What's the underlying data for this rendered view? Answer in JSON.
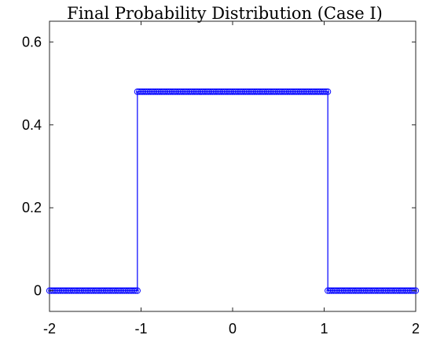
{
  "chart_data": {
    "type": "line",
    "title": "Final Probability Distribution (Case I)",
    "xlabel": "",
    "ylabel": "",
    "xlim": [
      -2,
      2
    ],
    "ylim": [
      -0.05,
      0.65
    ],
    "x_ticks": [
      -2,
      -1,
      0,
      1,
      2
    ],
    "x_tick_labels": [
      "-2",
      "-1",
      "0",
      "1",
      "2"
    ],
    "y_ticks": [
      0,
      0.2,
      0.4,
      0.6
    ],
    "y_tick_labels": [
      "0",
      "0.2",
      "0.4",
      "0.6"
    ],
    "grid": false,
    "box": true,
    "series": [
      {
        "color": "#0000FF",
        "marker": "circle-open",
        "line": "solid",
        "segments": [
          {
            "x_start": -2.0,
            "x_end": -1.04,
            "value": 0.0
          },
          {
            "x_start": -1.04,
            "x_end": 1.04,
            "value": 0.48
          },
          {
            "x_start": 1.04,
            "x_end": 2.0,
            "value": 0.0
          }
        ],
        "marker_spacing": 0.02
      }
    ]
  }
}
